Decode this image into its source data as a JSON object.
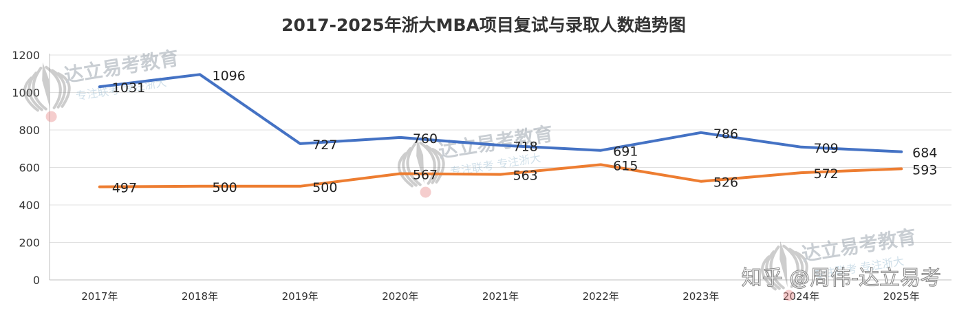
{
  "chart_data": {
    "type": "line",
    "title": "2017-2025年浙大MBA项目复试与录取人数趋势图",
    "xlabel": "",
    "ylabel": "",
    "ylim": [
      0,
      1200
    ],
    "yticks": [
      0,
      200,
      400,
      600,
      800,
      1000,
      1200
    ],
    "grid": true,
    "legend": "none",
    "categories": [
      "2017年",
      "2018年",
      "2019年",
      "2020年",
      "2021年",
      "2022年",
      "2023年",
      "2024年",
      "2025年"
    ],
    "series": [
      {
        "values": [
          1031,
          1096,
          727,
          760,
          718,
          691,
          786,
          709,
          684
        ],
        "color": "#4472C4"
      },
      {
        "values": [
          497,
          500,
          500,
          567,
          563,
          615,
          526,
          572,
          593
        ],
        "color": "#ED7D31"
      }
    ]
  },
  "watermarks": [
    {
      "brand": "达立易考教育",
      "slogan": "专注联考 专注浙大"
    }
  ],
  "zhihu_watermark": "知乎 @周伟-达立易考"
}
